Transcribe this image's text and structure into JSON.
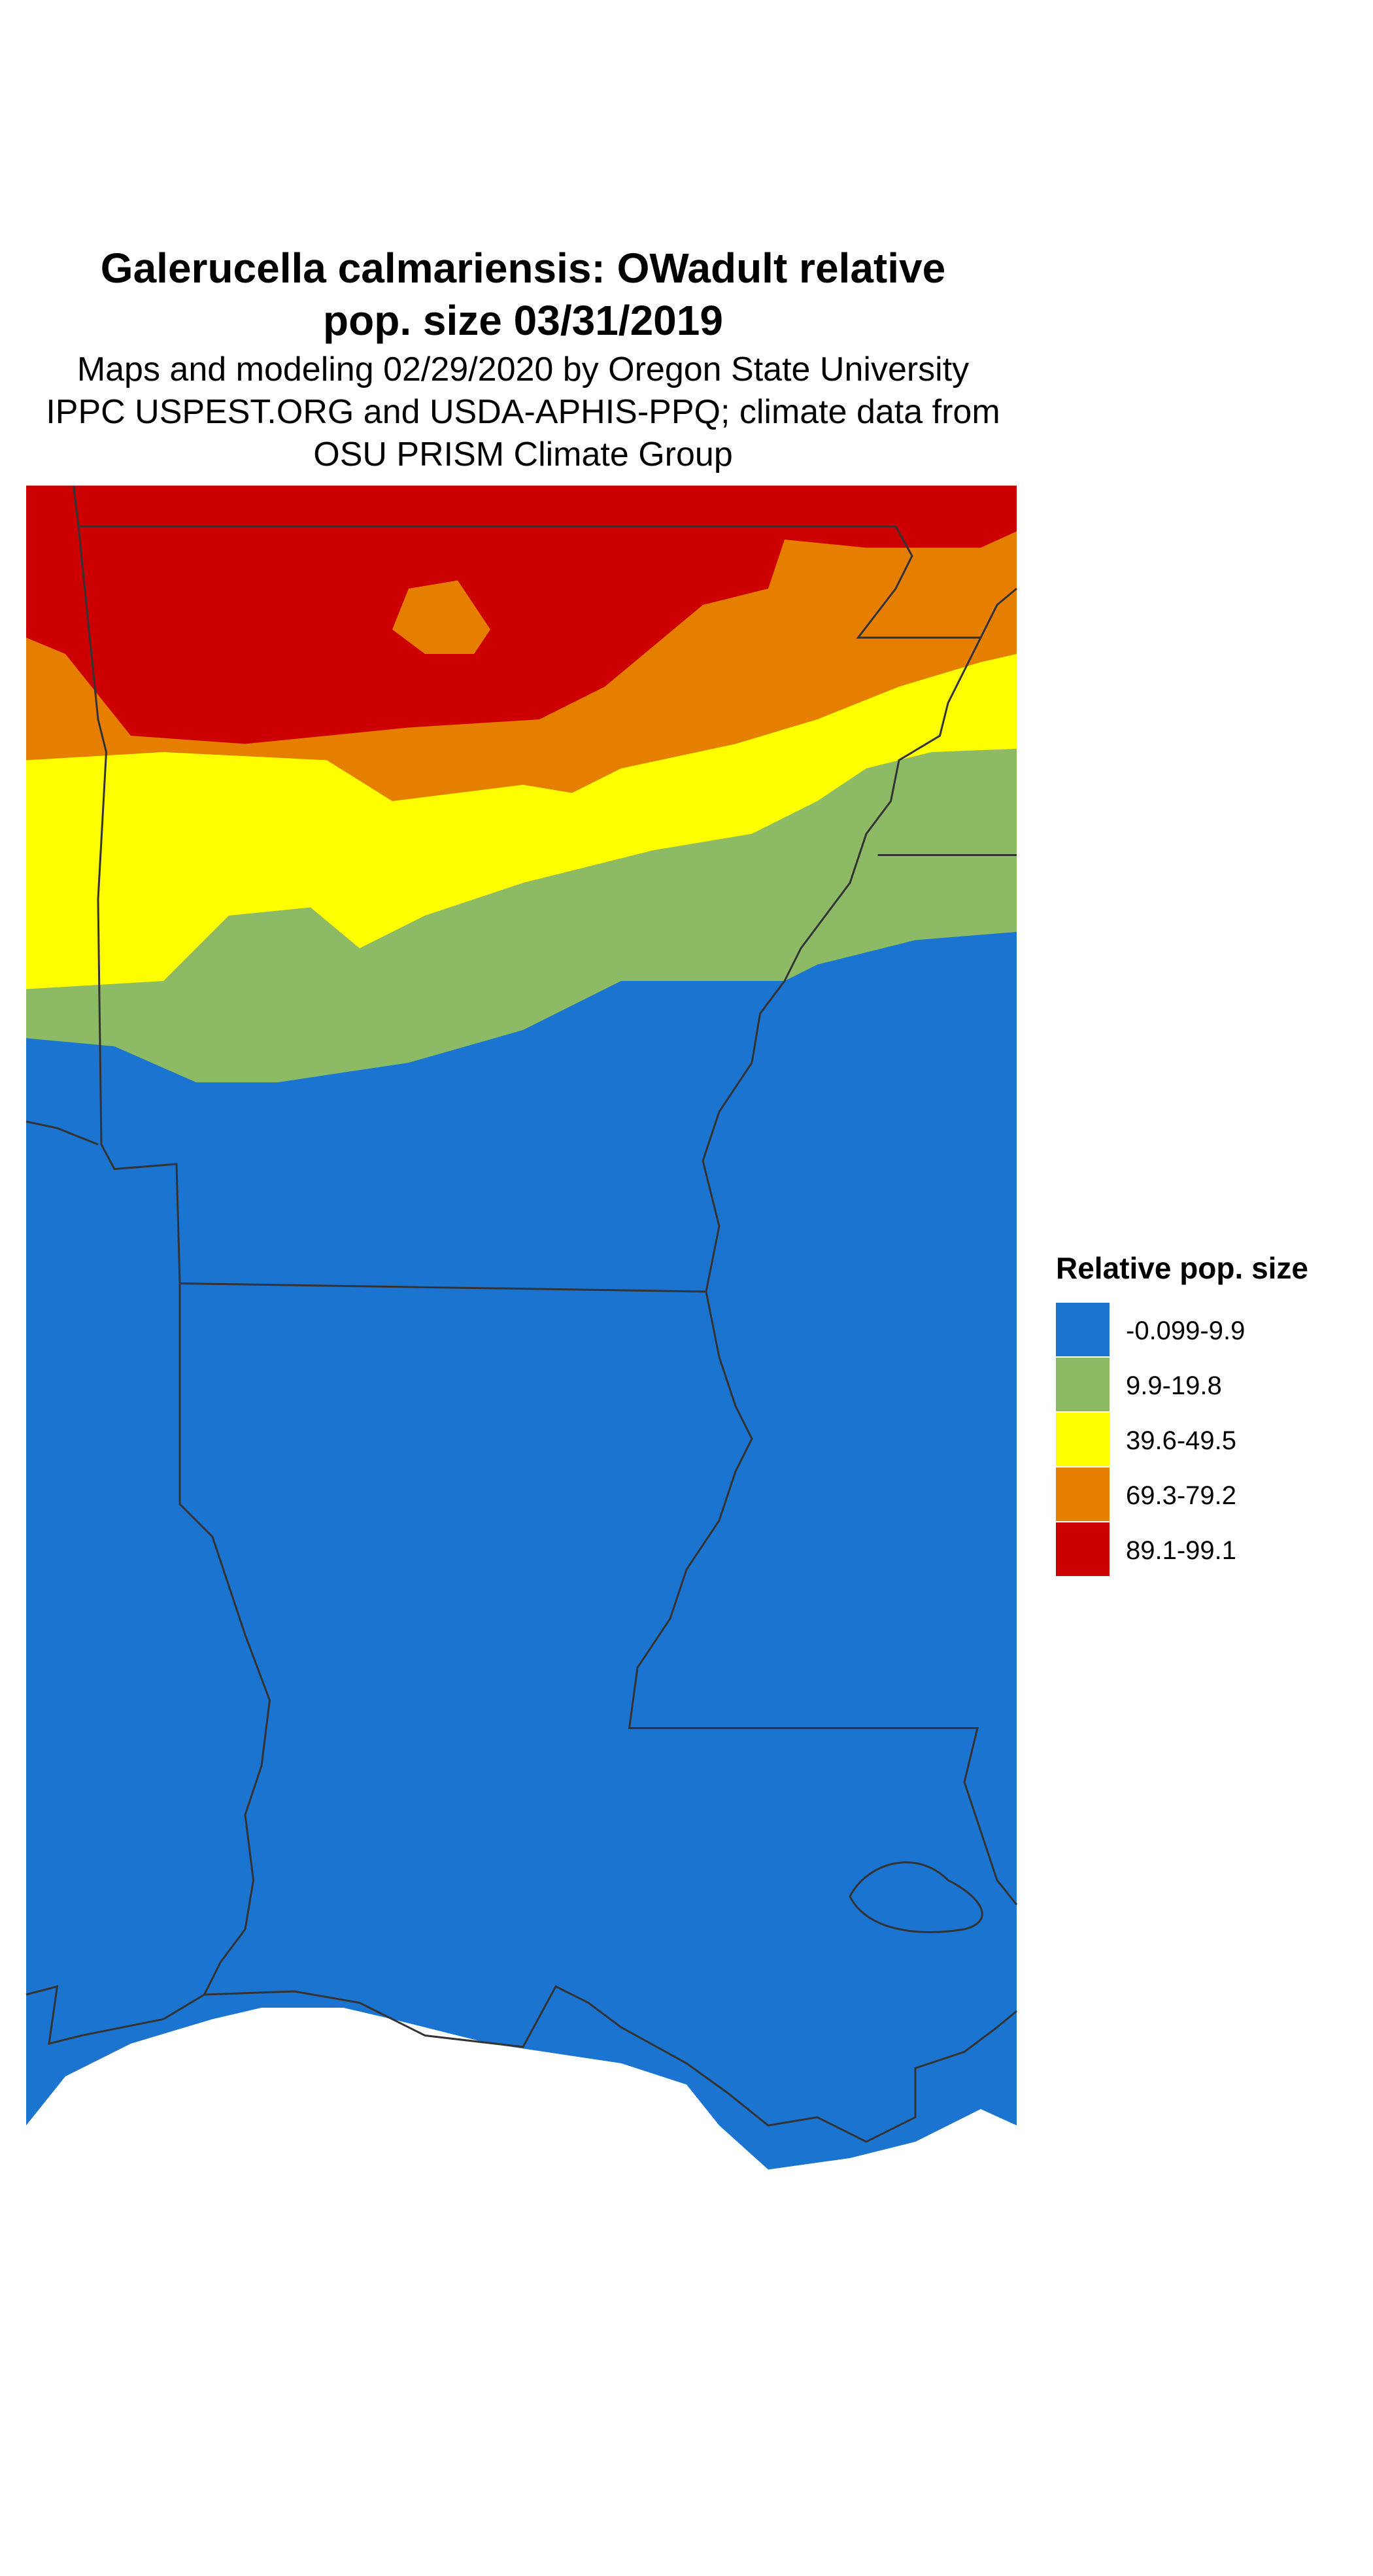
{
  "title_lines": [
    "Galerucella calmariensis: OWadult relative",
    "pop. size 03/31/2019"
  ],
  "subtitle_lines": [
    "Maps and modeling 02/29/2020 by Oregon State University",
    "IPPC USPEST.ORG and USDA-APHIS-PPQ; climate data from",
    "OSU PRISM Climate Group"
  ],
  "legend": {
    "title": "Relative pop. size",
    "items": [
      {
        "label": "-0.099-9.9",
        "color": "#1b75d0"
      },
      {
        "label": "9.9-19.8",
        "color": "#8cba65"
      },
      {
        "label": "39.6-49.5",
        "color": "#ffff00"
      },
      {
        "label": "69.3-79.2",
        "color": "#e67e00"
      },
      {
        "label": "89.1-99.1",
        "color": "#cc0000"
      }
    ]
  }
}
